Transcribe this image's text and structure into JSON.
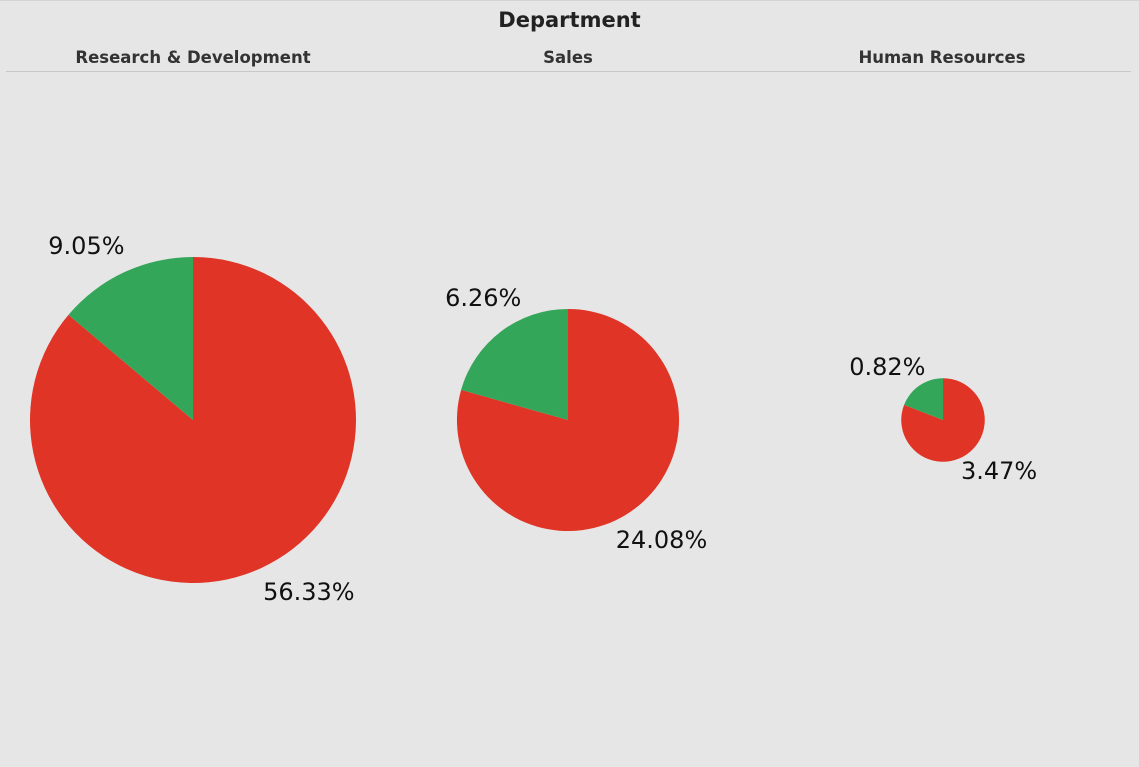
{
  "chart_data": {
    "type": "pie",
    "title": "Department",
    "colors": {
      "red": "#e03426",
      "green": "#34a65a",
      "background": "#e6e6e6"
    },
    "panels": [
      {
        "category": "Research & Development",
        "slices": [
          {
            "color": "#34a65a",
            "label": "9.05%",
            "value": 9.05
          },
          {
            "color": "#e03426",
            "label": "56.33%",
            "value": 56.33
          }
        ]
      },
      {
        "category": "Sales",
        "slices": [
          {
            "color": "#34a65a",
            "label": "6.26%",
            "value": 6.26
          },
          {
            "color": "#e03426",
            "label": "24.08%",
            "value": 24.08
          }
        ]
      },
      {
        "category": "Human Resources",
        "slices": [
          {
            "color": "#34a65a",
            "label": "0.82%",
            "value": 0.82
          },
          {
            "color": "#e03426",
            "label": "3.47%",
            "value": 3.47
          }
        ]
      }
    ]
  }
}
